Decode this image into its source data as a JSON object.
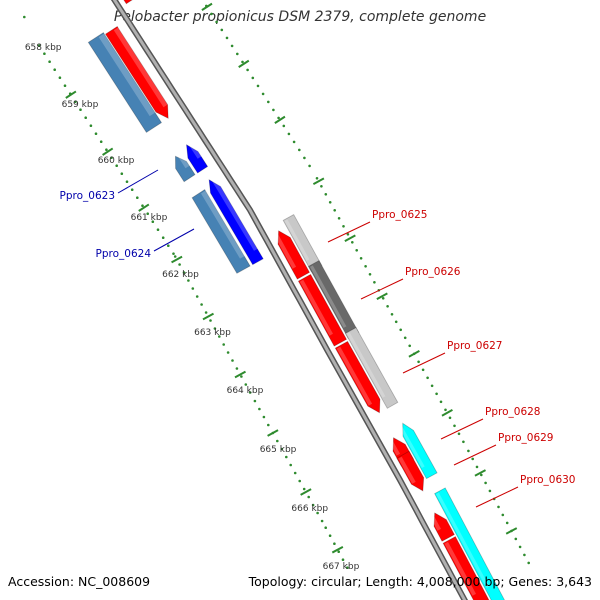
{
  "title": "Pelobacter propionicus DSM 2379, complete genome",
  "footer": {
    "accession": "Accession: NC_008609",
    "summary": "Topology: circular; Length: 4,008,000 bp; Genes: 3,643"
  },
  "colors": {
    "backbone": "#8c8c8c",
    "tick_marks": "#2e8b2e",
    "cds_red": "#ff0000",
    "cds_steel_blue": "#4682b4",
    "cds_blue": "#0000ff",
    "cds_light_gray": "#c8c8c8",
    "cds_dark_gray": "#696969",
    "cds_cyan": "#00ffff",
    "label_red": "#cc0000",
    "label_blue": "#0000aa"
  },
  "scale_ticks": [
    "658 kbp",
    "659 kbp",
    "660 kbp",
    "661 kbp",
    "662 kbp",
    "663 kbp",
    "664 kbp",
    "665 kbp",
    "666 kbp",
    "667 kbp"
  ],
  "gene_labels": [
    {
      "name": "Ppro_0623",
      "color": "label_blue"
    },
    {
      "name": "Ppro_0624",
      "color": "label_blue"
    },
    {
      "name": "Ppro_0625",
      "color": "label_red"
    },
    {
      "name": "Ppro_0626",
      "color": "label_red"
    },
    {
      "name": "Ppro_0627",
      "color": "label_red"
    },
    {
      "name": "Ppro_0628",
      "color": "label_red"
    },
    {
      "name": "Ppro_0629",
      "color": "label_red"
    },
    {
      "name": "Ppro_0630",
      "color": "label_red"
    }
  ]
}
